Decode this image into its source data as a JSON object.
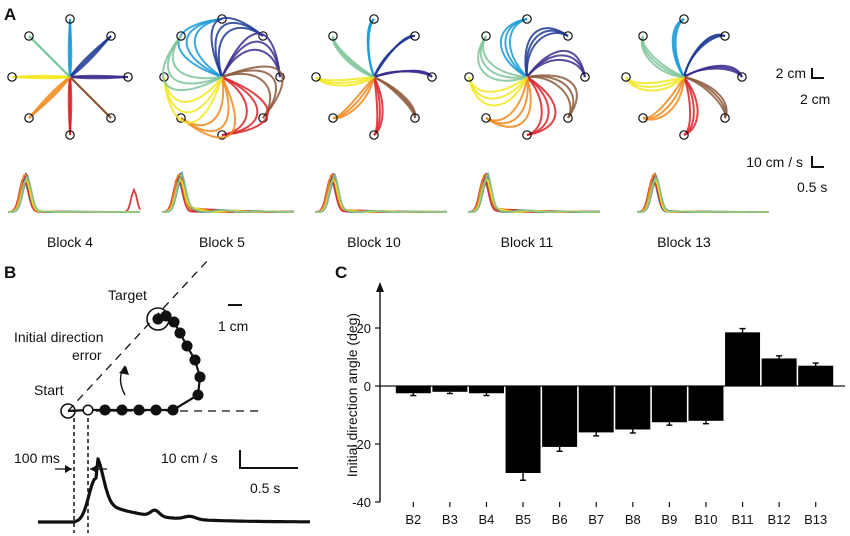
{
  "panel_labels": {
    "a": "A",
    "b": "B",
    "c": "C"
  },
  "panel_a": {
    "block_labels": [
      "Block 4",
      "Block 5",
      "Block 10",
      "Block 11",
      "Block 13"
    ],
    "scale_position_x": "2 cm",
    "scale_position_y": "2 cm",
    "scale_velocity_y": "10 cm / s",
    "scale_velocity_x": "0.5 s",
    "trajectory_colors": [
      "#1a9ad6",
      "#1f3a93",
      "#3b2e8e",
      "#8b5a3c",
      "#d9232a",
      "#f08a1c",
      "#f2e81e",
      "#7ec49a"
    ]
  },
  "panel_b": {
    "target_label": "Target",
    "start_label": "Start",
    "error_label_line1": "Initial direction",
    "error_label_line2": "error",
    "scale_distance": "1 cm",
    "time_label": "100 ms",
    "scale_velocity_y": "10 cm / s",
    "scale_velocity_x": "0.5 s"
  },
  "chart_data": {
    "type": "bar",
    "title": "",
    "xlabel": "",
    "ylabel": "Initial direction angle (deg)",
    "ylim": [
      -40,
      35
    ],
    "yticks": [
      20,
      0,
      -20,
      -40
    ],
    "categories": [
      "B2",
      "B3",
      "B4",
      "B5",
      "B6",
      "B7",
      "B8",
      "B9",
      "B10",
      "B11",
      "B12",
      "B13"
    ],
    "values": [
      -2.5,
      -2,
      -2.5,
      -30,
      -21,
      -16,
      -15,
      -12.5,
      -12,
      18.5,
      9.5,
      7
    ],
    "errors": [
      0.8,
      0.6,
      0.8,
      2.5,
      1.5,
      1.2,
      1.2,
      1.0,
      1.0,
      1.3,
      0.9,
      0.9
    ]
  }
}
